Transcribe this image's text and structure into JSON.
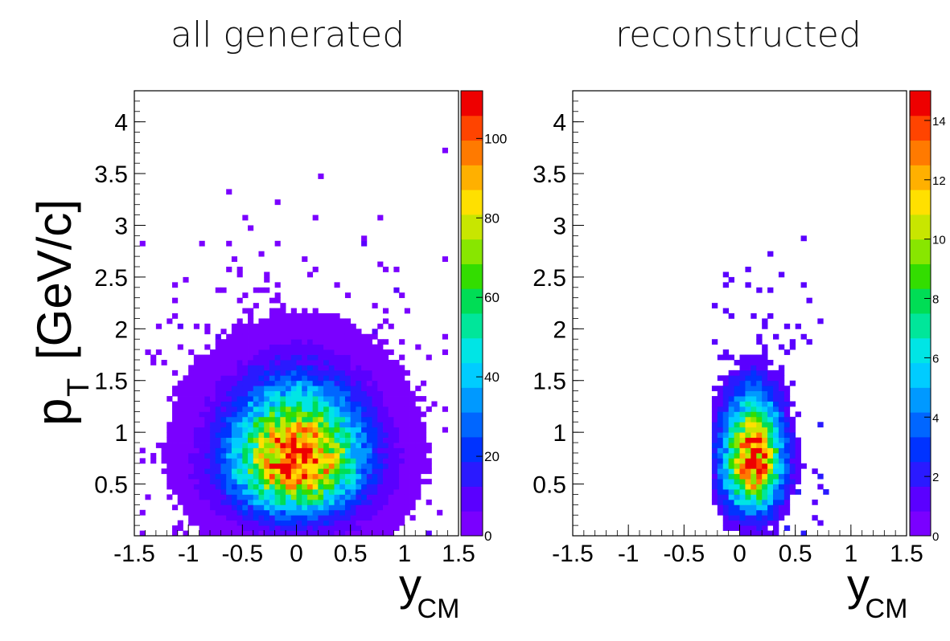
{
  "titles": {
    "left": "all generated",
    "right": "reconstructed"
  },
  "colors": {
    "palette": [
      "#7a00ff",
      "#5a00ff",
      "#2a1aff",
      "#0033ff",
      "#0066ff",
      "#0099ff",
      "#00ccff",
      "#00e5e5",
      "#00e69a",
      "#00dd55",
      "#33dd00",
      "#88e600",
      "#c8e600",
      "#ffe000",
      "#ffb000",
      "#ff7a00",
      "#ff4400",
      "#ee0000"
    ],
    "frame": "#000000"
  },
  "chart_data": [
    {
      "id": "left",
      "type": "heatmap",
      "title": "all generated",
      "xlabel": "y",
      "xlabel_sub": "CM",
      "ylabel": "p",
      "ylabel_sub": "T",
      "ylabel_unit": "[GeV/c]",
      "xlim": [
        -1.5,
        1.5
      ],
      "ylim": [
        0,
        4.3
      ],
      "x_ticks": [
        -1.5,
        -1,
        -0.5,
        0,
        0.5,
        1,
        1.5
      ],
      "x_tick_labels": [
        "-1.5",
        "-1",
        "-0.5",
        "0",
        "0.5",
        "1",
        "1.5"
      ],
      "y_ticks": [
        0.5,
        1,
        1.5,
        2,
        2.5,
        3,
        3.5,
        4
      ],
      "y_tick_labels": [
        "0.5",
        "1",
        "1.5",
        "2",
        "2.5",
        "3",
        "3.5",
        "4"
      ],
      "z_range": [
        0,
        112
      ],
      "z_ticks": [
        0,
        20,
        40,
        60,
        80,
        100
      ],
      "z_tick_labels": [
        "0",
        "20",
        "40",
        "60",
        "80",
        "100"
      ],
      "peak": {
        "x": 0.0,
        "y": 0.72,
        "z": 108
      },
      "spread": {
        "sigma_x": 0.4,
        "sigma_y": 0.48
      },
      "extent": {
        "x": [
          -1.45,
          1.45
        ],
        "y": [
          0.0,
          3.9
        ]
      }
    },
    {
      "id": "right",
      "type": "heatmap",
      "title": "reconstructed",
      "xlabel": "y",
      "xlabel_sub": "CM",
      "xlim": [
        -1.5,
        1.5
      ],
      "ylim": [
        0,
        4.3
      ],
      "x_ticks": [
        -1.5,
        -1,
        -0.5,
        0,
        0.5,
        1,
        1.5
      ],
      "x_tick_labels": [
        "-1.5",
        "-1",
        "-0.5",
        "0",
        "0.5",
        "1",
        "1.5"
      ],
      "y_ticks": [
        0.5,
        1,
        1.5,
        2,
        2.5,
        3,
        3.5,
        4
      ],
      "y_tick_labels": [
        "0.5",
        "1",
        "1.5",
        "2",
        "2.5",
        "3",
        "3.5",
        "4"
      ],
      "z_range": [
        0,
        15
      ],
      "z_ticks": [
        0,
        2,
        4,
        6,
        8,
        10,
        12,
        14
      ],
      "z_tick_labels": [
        "0",
        "2",
        "4",
        "6",
        "8",
        "10",
        "12",
        "14"
      ],
      "peak": {
        "x": 0.12,
        "y": 0.7,
        "z": 14
      },
      "spread": {
        "sigma_x": 0.18,
        "sigma_y": 0.45
      },
      "extent": {
        "x": [
          -0.25,
          0.9
        ],
        "y": [
          0.0,
          2.9
        ]
      }
    }
  ]
}
